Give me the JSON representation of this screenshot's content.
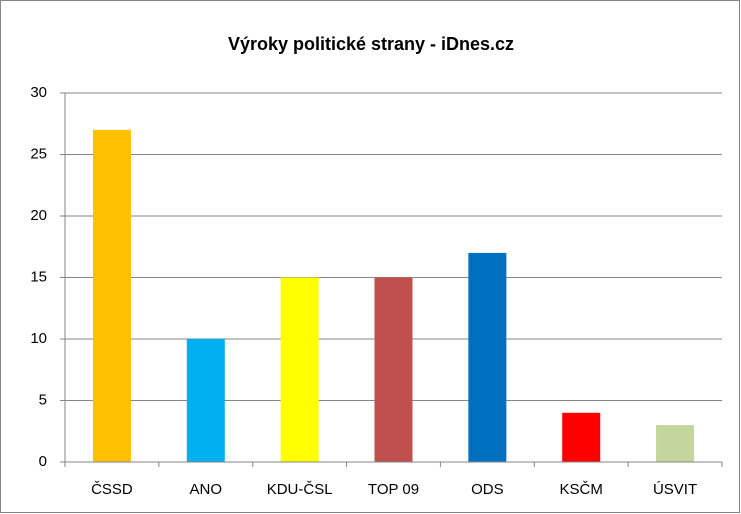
{
  "chart_data": {
    "type": "bar",
    "title": "Výroky politické strany  - iDnes.cz",
    "categories": [
      "ČSSD",
      "ANO",
      "KDU-ČSL",
      "TOP 09",
      "ODS",
      "KSČM",
      "ÚSVIT"
    ],
    "values": [
      27,
      10,
      15,
      15,
      17,
      4,
      3
    ],
    "colors": [
      "#FFC000",
      "#00B0F0",
      "#FFFF00",
      "#C0504D",
      "#0070C0",
      "#FF0000",
      "#C3D69B"
    ],
    "ylim": [
      0,
      30
    ],
    "yticks": [
      0,
      5,
      10,
      15,
      20,
      25,
      30
    ],
    "grid": true
  }
}
